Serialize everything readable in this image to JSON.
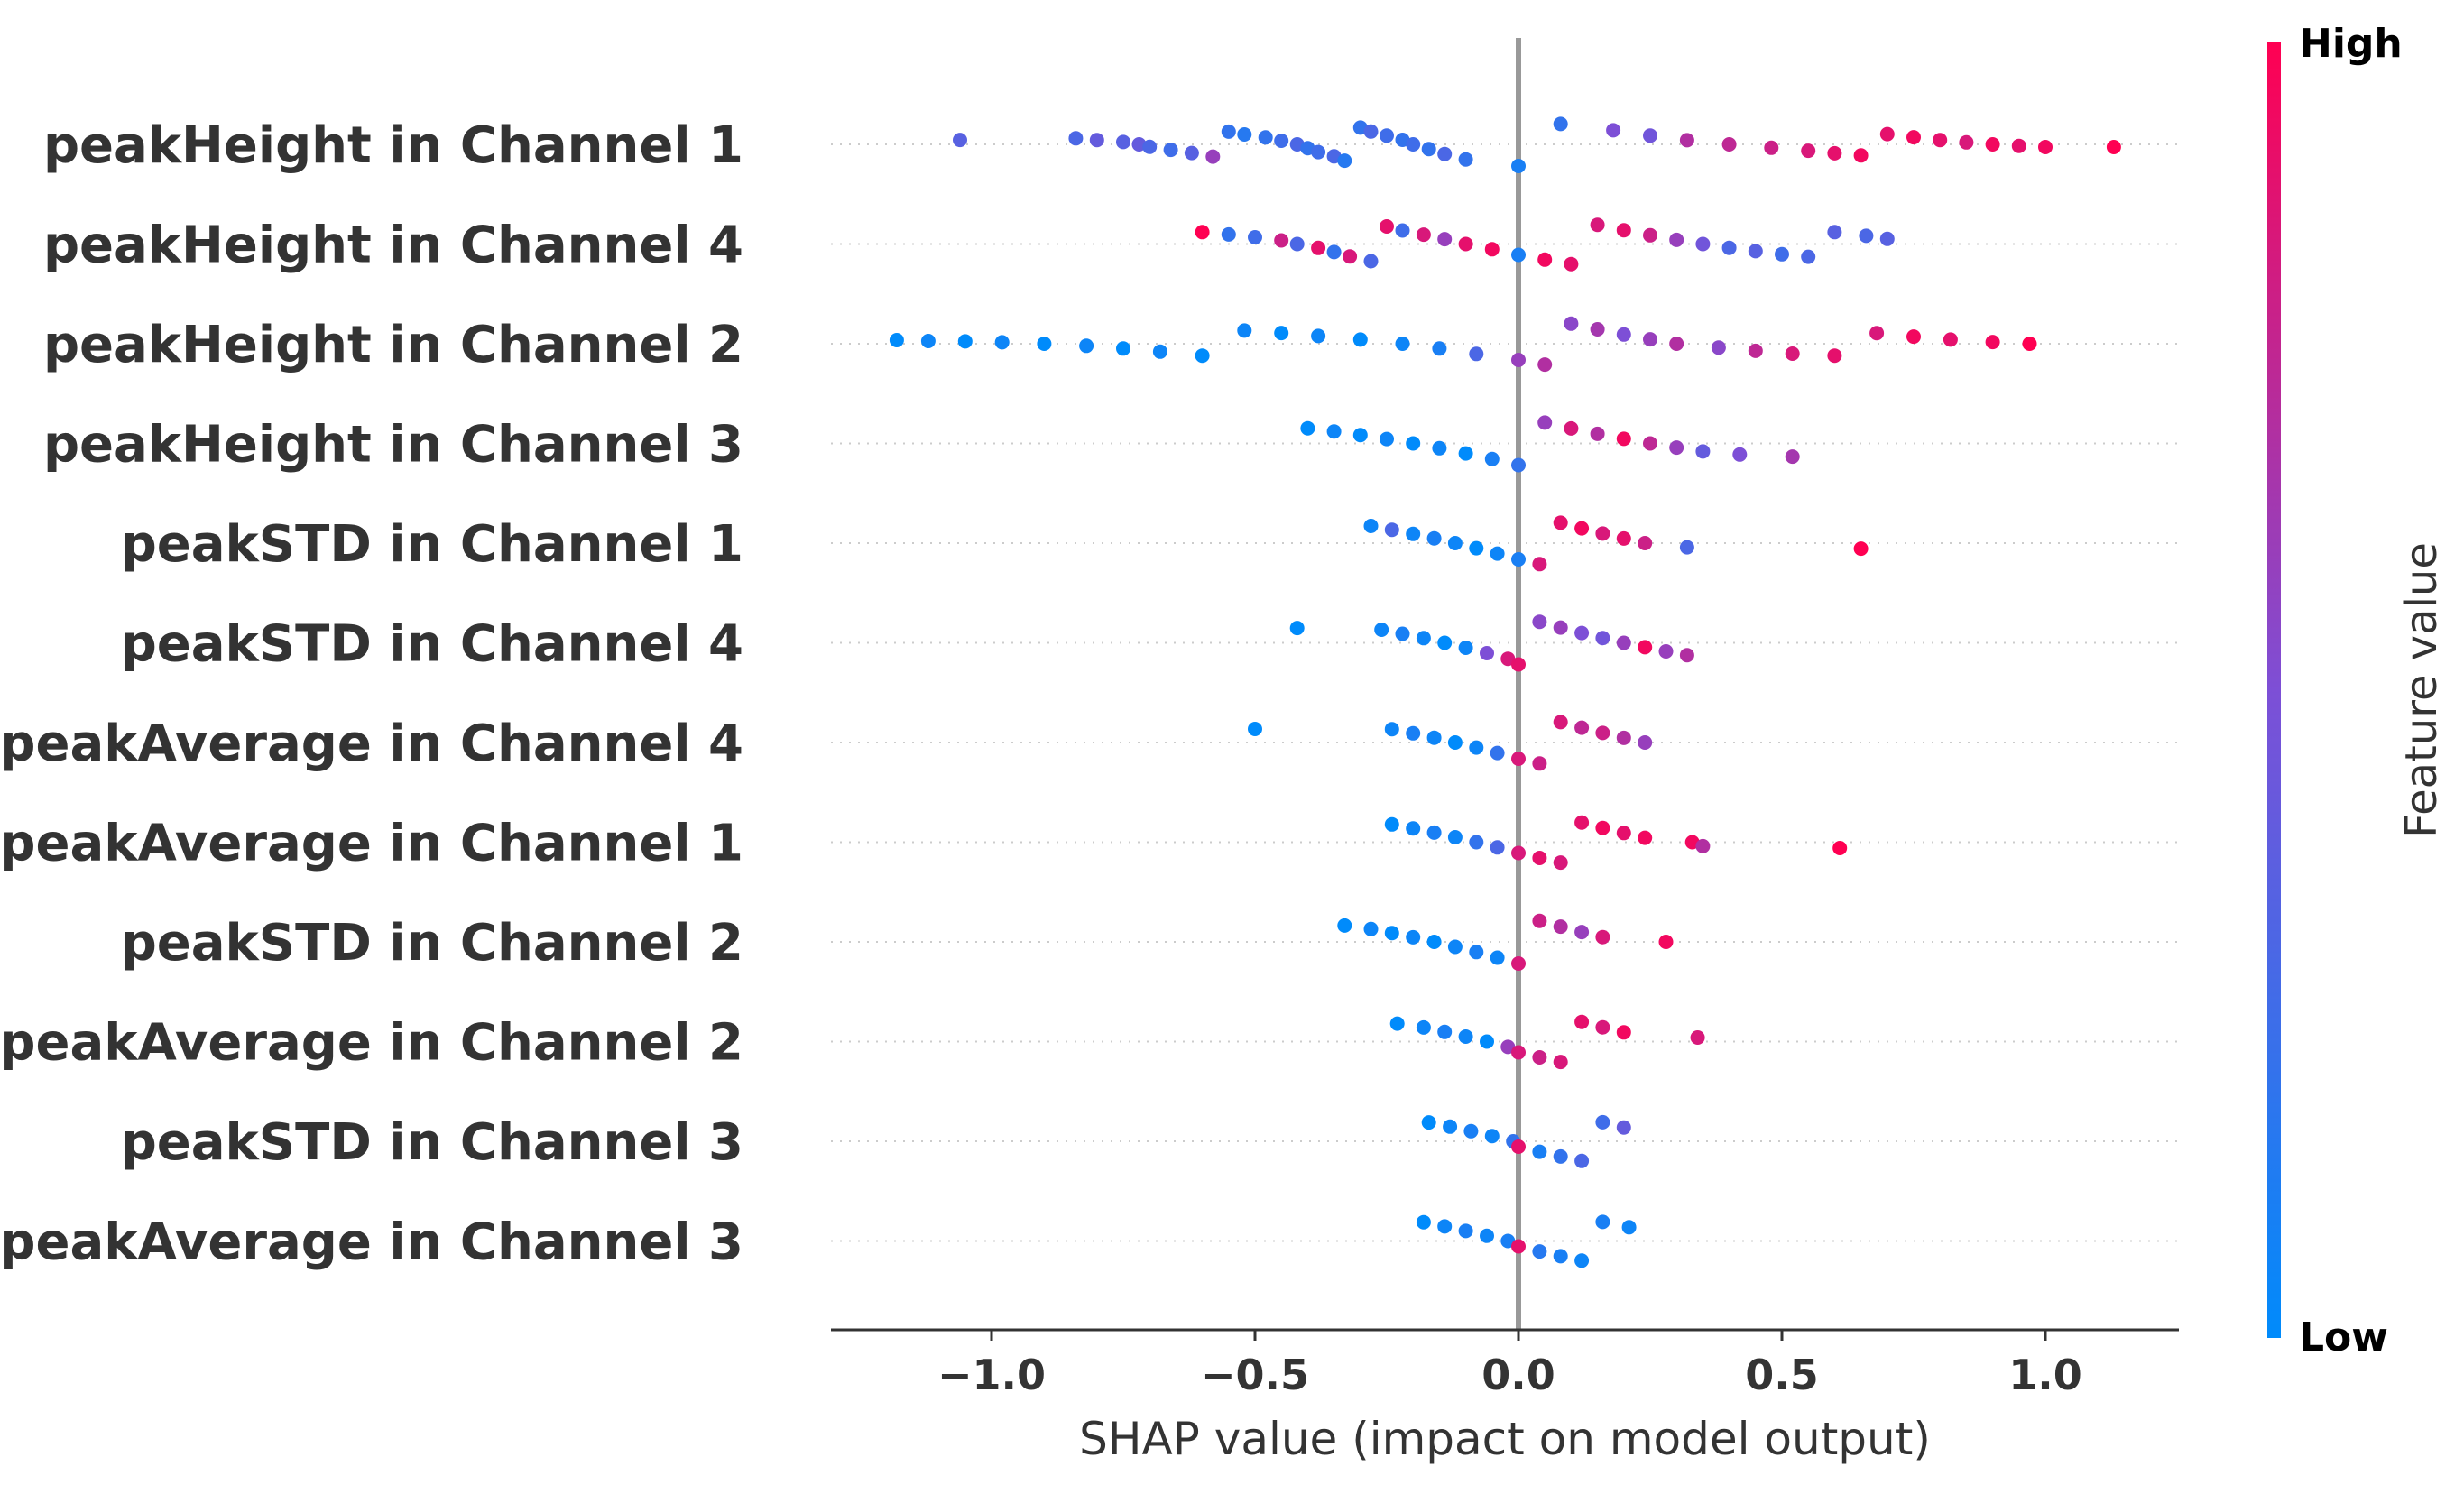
{
  "chart_data": {
    "type": "scatter",
    "subtype": "shap-beeswarm",
    "title": "",
    "xlabel": "SHAP value (impact on model output)",
    "ylabel": "",
    "xlim": [
      -1.3,
      1.26
    ],
    "xticks": [
      -1.0,
      -0.5,
      0.0,
      0.5,
      1.0
    ],
    "xtick_labels": [
      "−1.0",
      "−0.5",
      "0.0",
      "0.5",
      "1.0"
    ],
    "zero_line": 0.0,
    "grid": false,
    "row_guides": "dotted",
    "colorbar": {
      "title": "Feature value",
      "high_label": "High",
      "low_label": "Low",
      "placement": "right",
      "low_color": "#008bfb",
      "high_color": "#ff0052"
    },
    "features": [
      {
        "name": "peakHeight in Channel 1",
        "points": [
          [
            -1.06,
            0.35
          ],
          [
            -0.84,
            0.3
          ],
          [
            -0.8,
            0.4
          ],
          [
            -0.75,
            0.35
          ],
          [
            -0.72,
            0.4
          ],
          [
            -0.7,
            0.3
          ],
          [
            -0.66,
            0.25
          ],
          [
            -0.62,
            0.35
          ],
          [
            -0.58,
            0.6
          ],
          [
            -0.55,
            0.2
          ],
          [
            -0.52,
            0.15
          ],
          [
            -0.48,
            0.2
          ],
          [
            -0.45,
            0.25
          ],
          [
            -0.42,
            0.3
          ],
          [
            -0.4,
            0.2
          ],
          [
            -0.38,
            0.25
          ],
          [
            -0.35,
            0.3
          ],
          [
            -0.33,
            0.15
          ],
          [
            -0.3,
            0.2
          ],
          [
            -0.28,
            0.3
          ],
          [
            -0.25,
            0.25
          ],
          [
            -0.22,
            0.2
          ],
          [
            -0.2,
            0.25
          ],
          [
            -0.17,
            0.2
          ],
          [
            -0.14,
            0.3
          ],
          [
            -0.1,
            0.2
          ],
          [
            0.0,
            0.1
          ],
          [
            0.08,
            0.2
          ],
          [
            0.18,
            0.5
          ],
          [
            0.25,
            0.45
          ],
          [
            0.32,
            0.7
          ],
          [
            0.4,
            0.75
          ],
          [
            0.48,
            0.8
          ],
          [
            0.55,
            0.85
          ],
          [
            0.6,
            0.9
          ],
          [
            0.65,
            0.95
          ],
          [
            0.7,
            0.9
          ],
          [
            0.75,
            0.95
          ],
          [
            0.8,
            0.9
          ],
          [
            0.85,
            0.85
          ],
          [
            0.9,
            0.95
          ],
          [
            0.95,
            0.9
          ],
          [
            1.0,
            0.95
          ],
          [
            1.13,
            1.0
          ]
        ]
      },
      {
        "name": "peakHeight in Channel 4",
        "points": [
          [
            -0.6,
            1.0
          ],
          [
            -0.55,
            0.2
          ],
          [
            -0.5,
            0.25
          ],
          [
            -0.45,
            0.8
          ],
          [
            -0.42,
            0.3
          ],
          [
            -0.38,
            0.9
          ],
          [
            -0.35,
            0.2
          ],
          [
            -0.32,
            0.85
          ],
          [
            -0.28,
            0.3
          ],
          [
            -0.25,
            0.9
          ],
          [
            -0.22,
            0.25
          ],
          [
            -0.18,
            0.85
          ],
          [
            -0.14,
            0.6
          ],
          [
            -0.1,
            0.9
          ],
          [
            -0.05,
            0.95
          ],
          [
            0.0,
            0.1
          ],
          [
            0.05,
            0.95
          ],
          [
            0.1,
            0.9
          ],
          [
            0.15,
            0.85
          ],
          [
            0.2,
            0.9
          ],
          [
            0.25,
            0.8
          ],
          [
            0.3,
            0.6
          ],
          [
            0.35,
            0.45
          ],
          [
            0.4,
            0.3
          ],
          [
            0.45,
            0.35
          ],
          [
            0.5,
            0.25
          ],
          [
            0.55,
            0.3
          ],
          [
            0.6,
            0.35
          ],
          [
            0.66,
            0.3
          ],
          [
            0.7,
            0.35
          ]
        ]
      },
      {
        "name": "peakHeight in Channel 2",
        "points": [
          [
            -1.18,
            0.0
          ],
          [
            -1.12,
            0.05
          ],
          [
            -1.05,
            0.0
          ],
          [
            -0.98,
            0.05
          ],
          [
            -0.9,
            0.0
          ],
          [
            -0.82,
            0.05
          ],
          [
            -0.75,
            0.0
          ],
          [
            -0.68,
            0.05
          ],
          [
            -0.6,
            0.0
          ],
          [
            -0.52,
            0.05
          ],
          [
            -0.45,
            0.0
          ],
          [
            -0.38,
            0.05
          ],
          [
            -0.3,
            0.0
          ],
          [
            -0.22,
            0.05
          ],
          [
            -0.15,
            0.1
          ],
          [
            -0.08,
            0.3
          ],
          [
            0.0,
            0.6
          ],
          [
            0.05,
            0.7
          ],
          [
            0.1,
            0.55
          ],
          [
            0.15,
            0.65
          ],
          [
            0.2,
            0.5
          ],
          [
            0.25,
            0.6
          ],
          [
            0.3,
            0.7
          ],
          [
            0.38,
            0.55
          ],
          [
            0.45,
            0.75
          ],
          [
            0.52,
            0.85
          ],
          [
            0.6,
            0.9
          ],
          [
            0.68,
            0.85
          ],
          [
            0.75,
            0.95
          ],
          [
            0.82,
            0.9
          ],
          [
            0.9,
            0.95
          ],
          [
            0.97,
            1.0
          ]
        ]
      },
      {
        "name": "peakHeight in Channel 3",
        "points": [
          [
            -0.4,
            0.0
          ],
          [
            -0.35,
            0.05
          ],
          [
            -0.3,
            0.0
          ],
          [
            -0.25,
            0.05
          ],
          [
            -0.2,
            0.0
          ],
          [
            -0.15,
            0.05
          ],
          [
            -0.1,
            0.0
          ],
          [
            -0.05,
            0.1
          ],
          [
            0.0,
            0.2
          ],
          [
            0.05,
            0.6
          ],
          [
            0.1,
            0.85
          ],
          [
            0.15,
            0.7
          ],
          [
            0.2,
            0.95
          ],
          [
            0.25,
            0.75
          ],
          [
            0.3,
            0.6
          ],
          [
            0.35,
            0.4
          ],
          [
            0.42,
            0.5
          ],
          [
            0.52,
            0.65
          ]
        ]
      },
      {
        "name": "peakSTD in Channel 1",
        "points": [
          [
            -0.28,
            0.05
          ],
          [
            -0.24,
            0.3
          ],
          [
            -0.2,
            0.05
          ],
          [
            -0.16,
            0.1
          ],
          [
            -0.12,
            0.05
          ],
          [
            -0.08,
            0.0
          ],
          [
            -0.04,
            0.05
          ],
          [
            0.0,
            0.1
          ],
          [
            0.04,
            0.85
          ],
          [
            0.08,
            0.9
          ],
          [
            0.12,
            0.95
          ],
          [
            0.16,
            0.85
          ],
          [
            0.2,
            0.9
          ],
          [
            0.24,
            0.8
          ],
          [
            0.32,
            0.3
          ],
          [
            0.65,
            1.0
          ]
        ]
      },
      {
        "name": "peakSTD in Channel 4",
        "points": [
          [
            -0.42,
            0.0
          ],
          [
            -0.26,
            0.05
          ],
          [
            -0.22,
            0.1
          ],
          [
            -0.18,
            0.05
          ],
          [
            -0.14,
            0.0
          ],
          [
            -0.1,
            0.05
          ],
          [
            -0.06,
            0.5
          ],
          [
            -0.02,
            0.85
          ],
          [
            0.0,
            0.9
          ],
          [
            0.04,
            0.55
          ],
          [
            0.08,
            0.6
          ],
          [
            0.12,
            0.5
          ],
          [
            0.16,
            0.45
          ],
          [
            0.2,
            0.6
          ],
          [
            0.24,
            0.95
          ],
          [
            0.28,
            0.6
          ],
          [
            0.32,
            0.7
          ]
        ]
      },
      {
        "name": "peakAverage in Channel 4",
        "points": [
          [
            -0.5,
            0.0
          ],
          [
            -0.24,
            0.05
          ],
          [
            -0.2,
            0.1
          ],
          [
            -0.16,
            0.05
          ],
          [
            -0.12,
            0.0
          ],
          [
            -0.08,
            0.05
          ],
          [
            -0.04,
            0.2
          ],
          [
            0.0,
            0.85
          ],
          [
            0.04,
            0.8
          ],
          [
            0.08,
            0.85
          ],
          [
            0.12,
            0.75
          ],
          [
            0.16,
            0.8
          ],
          [
            0.2,
            0.7
          ],
          [
            0.24,
            0.6
          ]
        ]
      },
      {
        "name": "peakAverage in Channel 1",
        "points": [
          [
            -0.24,
            0.0
          ],
          [
            -0.2,
            0.05
          ],
          [
            -0.16,
            0.1
          ],
          [
            -0.12,
            0.05
          ],
          [
            -0.08,
            0.2
          ],
          [
            -0.04,
            0.3
          ],
          [
            0.0,
            0.85
          ],
          [
            0.04,
            0.9
          ],
          [
            0.08,
            0.85
          ],
          [
            0.12,
            0.9
          ],
          [
            0.16,
            0.95
          ],
          [
            0.2,
            0.9
          ],
          [
            0.24,
            0.95
          ],
          [
            0.33,
            0.95
          ],
          [
            0.35,
            0.7
          ],
          [
            0.61,
            1.0
          ]
        ]
      },
      {
        "name": "peakSTD in Channel 2",
        "points": [
          [
            -0.33,
            0.0
          ],
          [
            -0.28,
            0.05
          ],
          [
            -0.24,
            0.0
          ],
          [
            -0.2,
            0.05
          ],
          [
            -0.16,
            0.0
          ],
          [
            -0.12,
            0.05
          ],
          [
            -0.08,
            0.1
          ],
          [
            -0.04,
            0.05
          ],
          [
            0.0,
            0.85
          ],
          [
            0.04,
            0.8
          ],
          [
            0.08,
            0.7
          ],
          [
            0.12,
            0.6
          ],
          [
            0.16,
            0.85
          ],
          [
            0.28,
            0.95
          ]
        ]
      },
      {
        "name": "peakAverage in Channel 2",
        "points": [
          [
            -0.23,
            0.0
          ],
          [
            -0.18,
            0.05
          ],
          [
            -0.14,
            0.1
          ],
          [
            -0.1,
            0.05
          ],
          [
            -0.06,
            0.0
          ],
          [
            -0.02,
            0.6
          ],
          [
            0.0,
            0.85
          ],
          [
            0.04,
            0.8
          ],
          [
            0.08,
            0.85
          ],
          [
            0.12,
            0.9
          ],
          [
            0.16,
            0.85
          ],
          [
            0.2,
            0.95
          ],
          [
            0.34,
            0.85
          ]
        ]
      },
      {
        "name": "peakSTD in Channel 3",
        "points": [
          [
            -0.17,
            0.0
          ],
          [
            -0.13,
            0.05
          ],
          [
            -0.09,
            0.1
          ],
          [
            -0.05,
            0.05
          ],
          [
            -0.01,
            0.2
          ],
          [
            0.0,
            0.9
          ],
          [
            0.04,
            0.1
          ],
          [
            0.08,
            0.2
          ],
          [
            0.12,
            0.3
          ],
          [
            0.16,
            0.25
          ],
          [
            0.2,
            0.4
          ]
        ]
      },
      {
        "name": "peakAverage in Channel 3",
        "points": [
          [
            -0.18,
            0.0
          ],
          [
            -0.14,
            0.05
          ],
          [
            -0.1,
            0.1
          ],
          [
            -0.06,
            0.05
          ],
          [
            -0.02,
            0.1
          ],
          [
            0.0,
            0.9
          ],
          [
            0.04,
            0.15
          ],
          [
            0.08,
            0.1
          ],
          [
            0.12,
            0.05
          ],
          [
            0.16,
            0.1
          ],
          [
            0.21,
            0.05
          ]
        ]
      }
    ]
  }
}
